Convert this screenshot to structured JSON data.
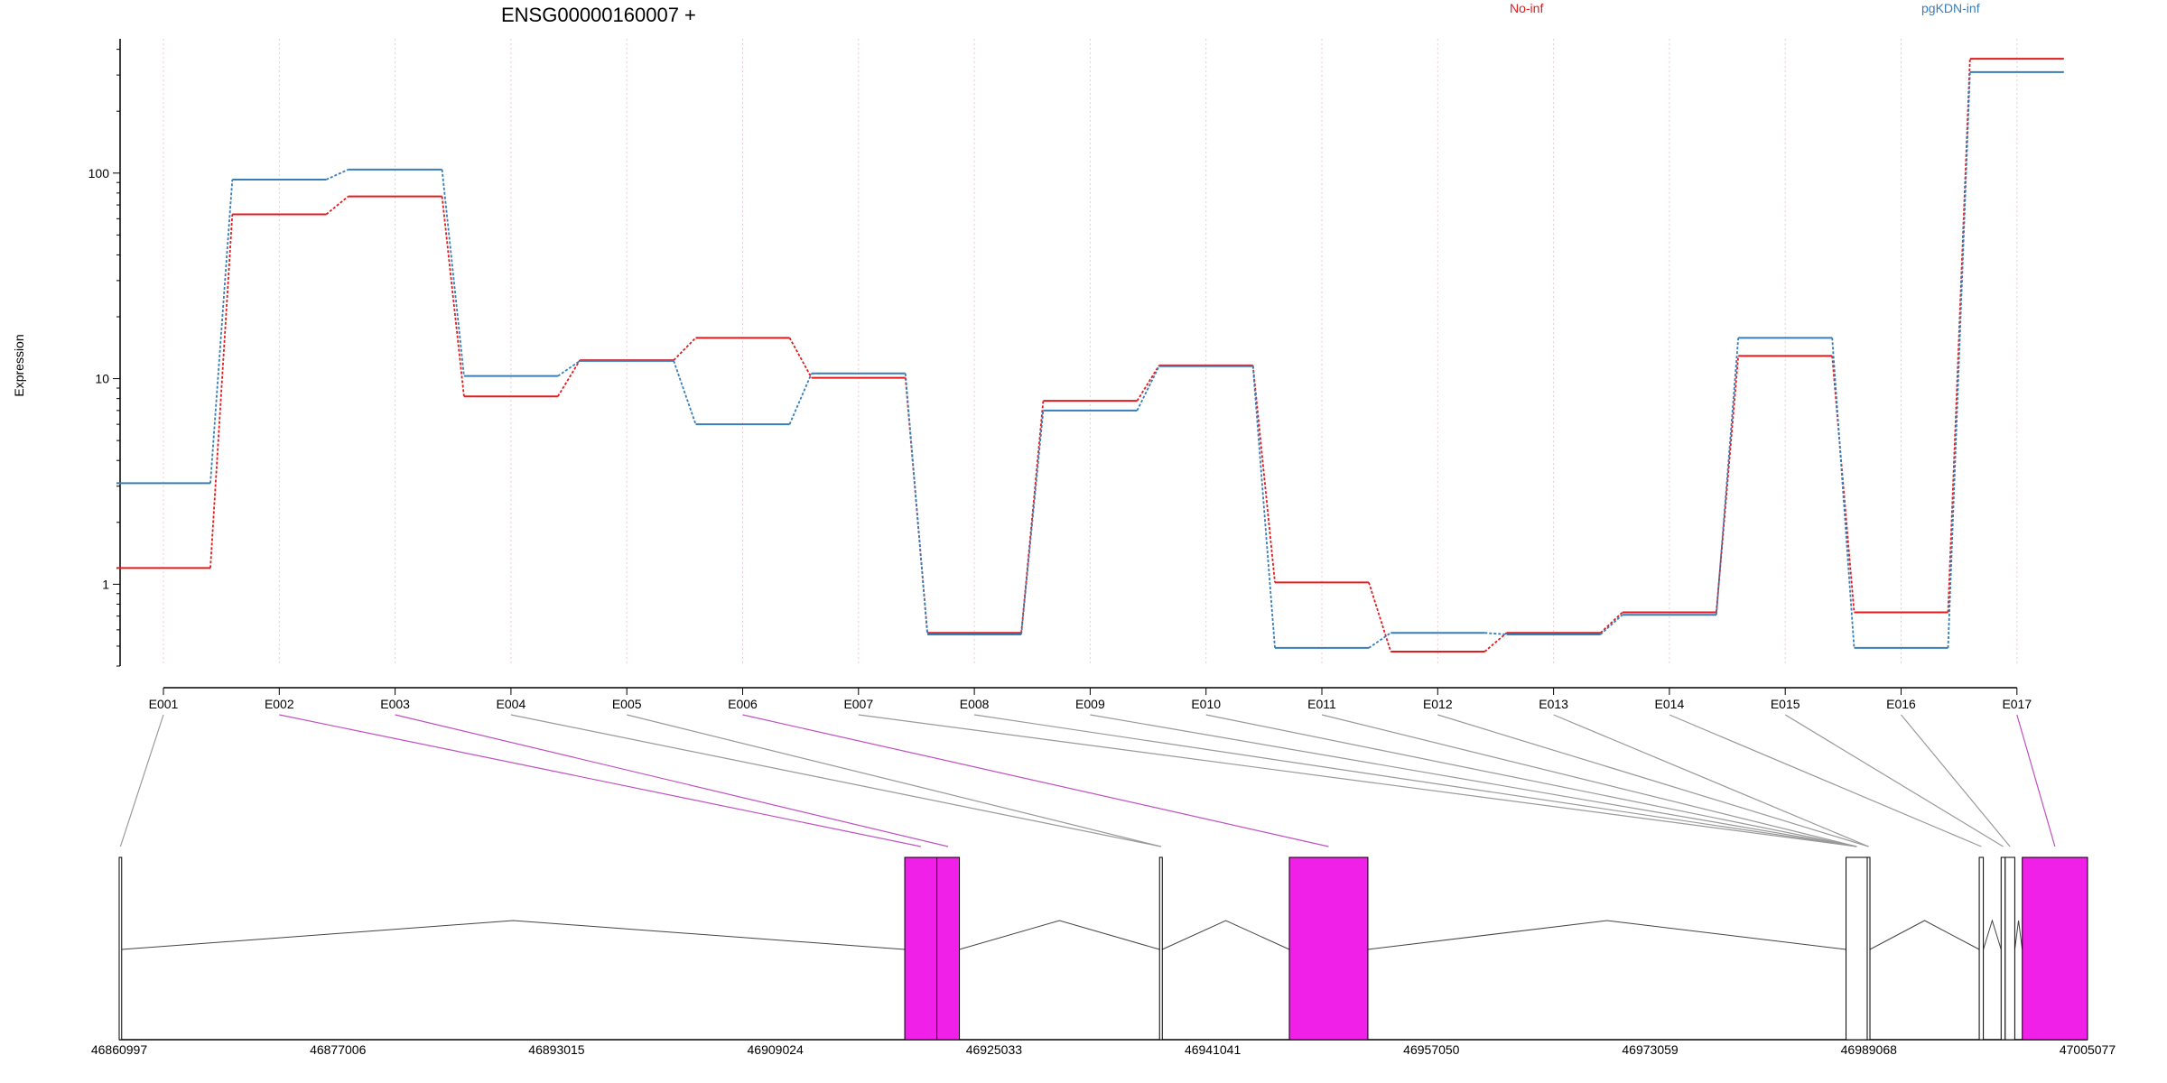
{
  "chart_data": {
    "type": "line",
    "title": "ENSG00000160007 +",
    "ylabel": "Expression",
    "yscale": "log",
    "ylim": [
      0.4,
      450
    ],
    "yticks": [
      1,
      10,
      100
    ],
    "ytick_labels": [
      "1",
      "10",
      "100"
    ],
    "categories": [
      "E001",
      "E002",
      "E003",
      "E004",
      "E005",
      "E006",
      "E007",
      "E008",
      "E009",
      "E010",
      "E011",
      "E012",
      "E013",
      "E014",
      "E015",
      "E016",
      "E017"
    ],
    "series": [
      {
        "name": "No-inf",
        "color": "#e41a1c",
        "values": [
          1.2,
          63,
          77,
          8.2,
          12.3,
          15.8,
          10.1,
          0.58,
          7.8,
          11.6,
          1.02,
          0.47,
          0.58,
          0.73,
          12.9,
          0.73,
          360
        ]
      },
      {
        "name": "pgKDN-inf",
        "color": "#377eb8",
        "values": [
          3.1,
          93,
          104,
          10.3,
          12.2,
          6.0,
          10.6,
          0.57,
          7.0,
          11.5,
          0.49,
          0.58,
          0.57,
          0.71,
          15.8,
          0.49,
          310
        ]
      }
    ],
    "grid": "vertical dotted pink",
    "gene_model": {
      "start": 46860997,
      "end": 47005077,
      "coord_ticks": [
        "46860997",
        "46877006",
        "46893015",
        "46909024",
        "46925033",
        "46941041",
        "46957050",
        "46973059",
        "46989068",
        "47005077"
      ],
      "exons": [
        {
          "start": 46860997,
          "end": 46861180,
          "highlight": false
        },
        {
          "start": 46918500,
          "end": 46920850,
          "highlight": true
        },
        {
          "start": 46920850,
          "end": 46922500,
          "highlight": true
        },
        {
          "start": 46937150,
          "end": 46937350,
          "highlight": false
        },
        {
          "start": 46946650,
          "end": 46952400,
          "highlight": true
        },
        {
          "start": 46987400,
          "end": 46988950,
          "highlight": false
        },
        {
          "start": 46988950,
          "end": 46989150,
          "highlight": false
        },
        {
          "start": 46997150,
          "end": 46997450,
          "highlight": false
        },
        {
          "start": 46998750,
          "end": 46999050,
          "highlight": false
        },
        {
          "start": 46999050,
          "end": 46999750,
          "highlight": false
        },
        {
          "start": 47000300,
          "end": 47005077,
          "highlight": true
        }
      ],
      "exon_links": [
        {
          "start": 46860997,
          "end": 46861180,
          "highlight": false
        },
        {
          "start": 46918500,
          "end": 46920850,
          "highlight": true
        },
        {
          "start": 46920850,
          "end": 46922500,
          "highlight": true
        },
        {
          "start": 46937150,
          "end": 46937350,
          "highlight": false
        },
        {
          "start": 46937150,
          "end": 46937350,
          "highlight": false
        },
        {
          "start": 46946650,
          "end": 46952400,
          "highlight": true
        },
        {
          "start": 46987400,
          "end": 46988950,
          "highlight": false
        },
        {
          "start": 46987400,
          "end": 46988950,
          "highlight": false
        },
        {
          "start": 46987400,
          "end": 46988950,
          "highlight": false
        },
        {
          "start": 46987400,
          "end": 46988950,
          "highlight": false
        },
        {
          "start": 46987400,
          "end": 46988950,
          "highlight": false
        },
        {
          "start": 46988950,
          "end": 46989150,
          "highlight": false
        },
        {
          "start": 46988950,
          "end": 46989150,
          "highlight": false
        },
        {
          "start": 46997150,
          "end": 46997450,
          "highlight": false
        },
        {
          "start": 46998750,
          "end": 46999050,
          "highlight": false
        },
        {
          "start": 46999050,
          "end": 46999750,
          "highlight": false
        },
        {
          "start": 47000300,
          "end": 47005077,
          "highlight": true
        }
      ]
    },
    "colors": {
      "highlight": "#f020e8",
      "link_normal": "#999999",
      "link_highlight": "#c050c0",
      "grid": "#f0c8d8"
    }
  }
}
